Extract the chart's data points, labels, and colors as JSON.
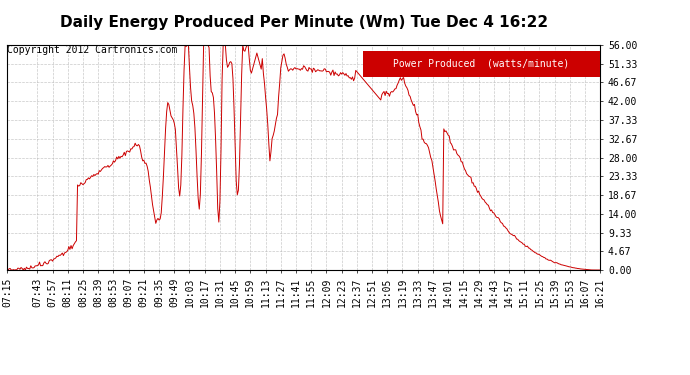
{
  "title": "Daily Energy Produced Per Minute (Wm) Tue Dec 4 16:22",
  "copyright": "Copyright 2012 Cartronics.com",
  "legend_label": "Power Produced  (watts/minute)",
  "legend_bg": "#cc0000",
  "legend_fg": "#ffffff",
  "line_color": "#cc0000",
  "background_color": "#ffffff",
  "grid_color": "#bbbbbb",
  "ylim": [
    0,
    56.0
  ],
  "yticks": [
    0.0,
    4.67,
    9.33,
    14.0,
    18.67,
    23.33,
    28.0,
    32.67,
    37.33,
    42.0,
    46.67,
    51.33,
    56.0
  ],
  "ytick_labels": [
    "0.00",
    "4.67",
    "9.33",
    "14.00",
    "18.67",
    "23.33",
    "28.00",
    "32.67",
    "37.33",
    "42.00",
    "46.67",
    "51.33",
    "56.00"
  ],
  "xtick_labels": [
    "07:15",
    "07:43",
    "07:57",
    "08:11",
    "08:25",
    "08:39",
    "08:53",
    "09:07",
    "09:21",
    "09:35",
    "09:49",
    "10:03",
    "10:17",
    "10:31",
    "10:45",
    "10:59",
    "11:13",
    "11:27",
    "11:41",
    "11:55",
    "12:09",
    "12:23",
    "12:37",
    "12:51",
    "13:05",
    "13:19",
    "13:33",
    "13:47",
    "14:01",
    "14:15",
    "14:29",
    "14:43",
    "14:57",
    "15:11",
    "15:25",
    "15:39",
    "15:53",
    "16:07",
    "16:21"
  ],
  "title_fontsize": 11,
  "copyright_fontsize": 7,
  "tick_fontsize": 7
}
